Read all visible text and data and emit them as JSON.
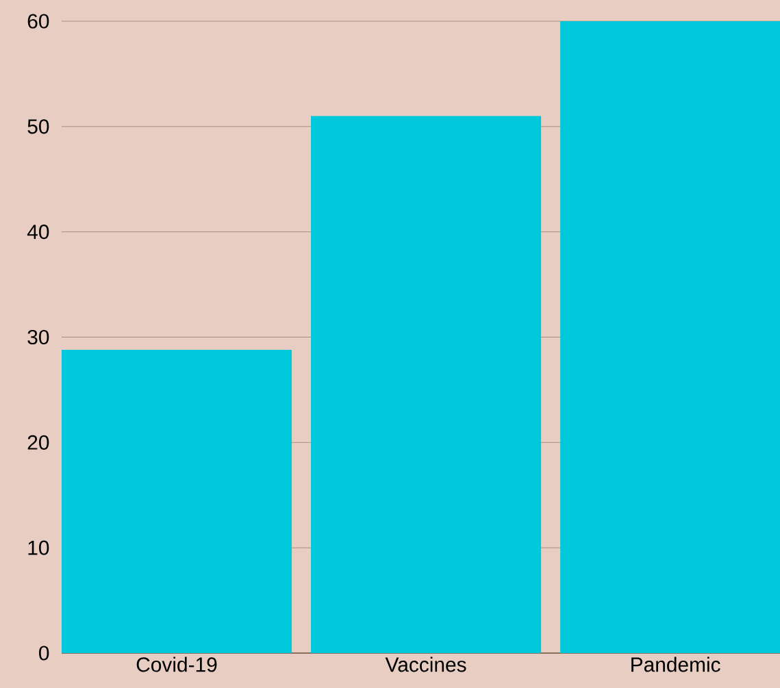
{
  "chart_data": {
    "type": "bar",
    "categories": [
      "Covid-19",
      "Vaccines",
      "Pandemic"
    ],
    "values": [
      28.8,
      51,
      60
    ],
    "color": "#00c9dc",
    "ylim": [
      0,
      60
    ],
    "yticks": [
      0,
      10,
      20,
      30,
      40,
      50,
      60
    ],
    "grid": "y"
  }
}
